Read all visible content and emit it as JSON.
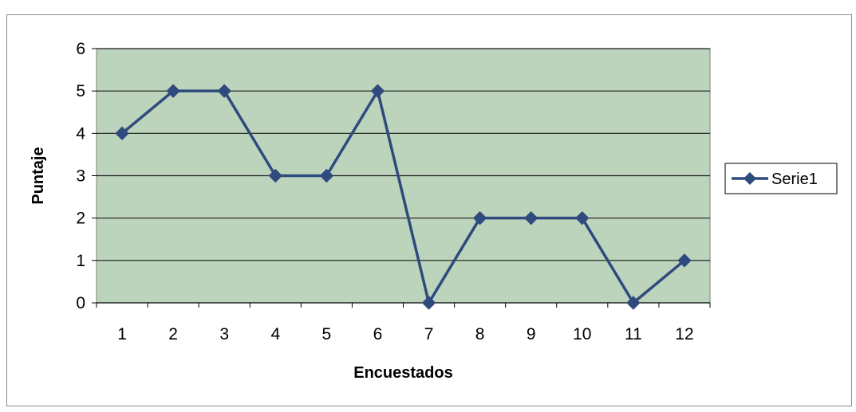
{
  "chart_data": {
    "type": "line",
    "title": "",
    "xlabel": "Encuestados",
    "ylabel": "Puntaje",
    "categories": [
      "1",
      "2",
      "3",
      "4",
      "5",
      "6",
      "7",
      "8",
      "9",
      "10",
      "11",
      "12"
    ],
    "yticks": [
      "0",
      "1",
      "2",
      "3",
      "4",
      "5",
      "6"
    ],
    "ylim": [
      0,
      6
    ],
    "grid": true,
    "legend_position": "right",
    "series": [
      {
        "name": "Serie1",
        "values": [
          4,
          5,
          5,
          3,
          3,
          5,
          0,
          2,
          2,
          2,
          0,
          1
        ]
      }
    ],
    "colors": {
      "series": "#2f4a7c",
      "plot_background": "#bcd4bc",
      "grid": "#1a1a1a"
    }
  }
}
